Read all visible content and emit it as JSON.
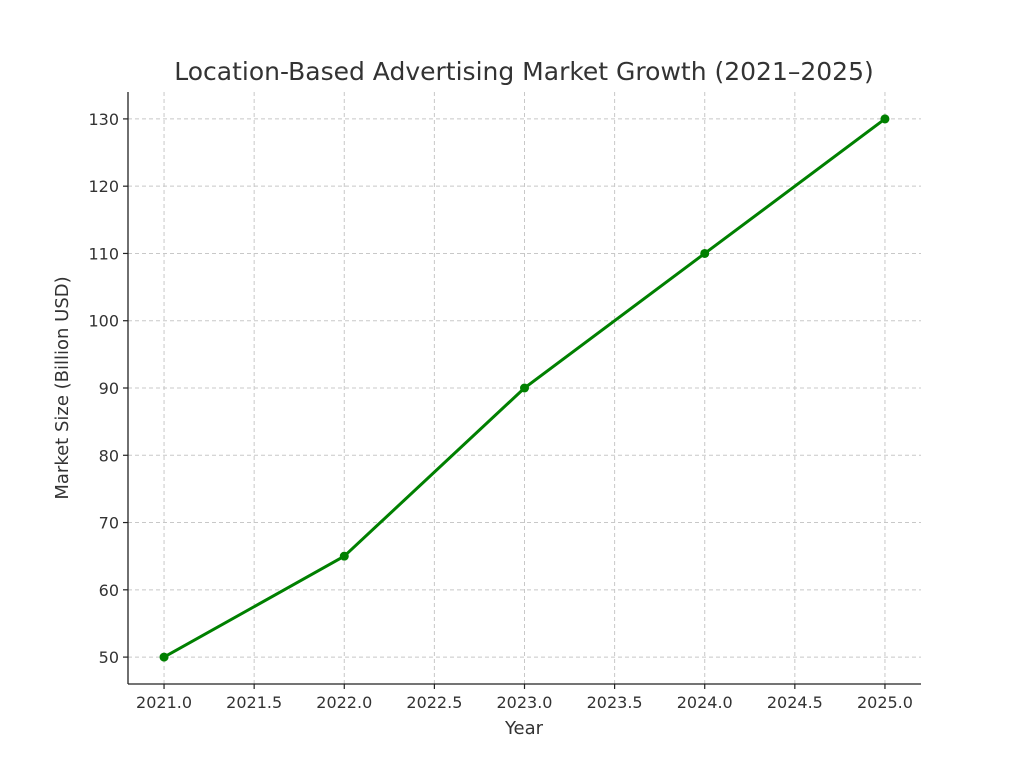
{
  "chart_data": {
    "type": "line",
    "title": "Location-Based Advertising Market Growth (2021–2025)",
    "xlabel": "Year",
    "ylabel": "Market Size (Billion USD)",
    "x": [
      2021,
      2022,
      2023,
      2024,
      2025
    ],
    "values": [
      50,
      65,
      90,
      110,
      130
    ],
    "color": "#008000",
    "xlim": [
      2020.8,
      2025.2
    ],
    "xticks": [
      {
        "value": 2021,
        "label": "2021.0"
      },
      {
        "value": 2021.5,
        "label": "2021.5"
      },
      {
        "value": 2022,
        "label": "2022.0"
      },
      {
        "value": 2022.5,
        "label": "2022.5"
      },
      {
        "value": 2023,
        "label": "2023.0"
      },
      {
        "value": 2023.5,
        "label": "2023.5"
      },
      {
        "value": 2024,
        "label": "2024.0"
      },
      {
        "value": 2024.5,
        "label": "2024.5"
      },
      {
        "value": 2025,
        "label": "2025.0"
      }
    ],
    "ylim": [
      46,
      134
    ],
    "yticks": [
      50,
      60,
      70,
      80,
      90,
      100,
      110,
      120,
      130
    ],
    "grid": true
  }
}
